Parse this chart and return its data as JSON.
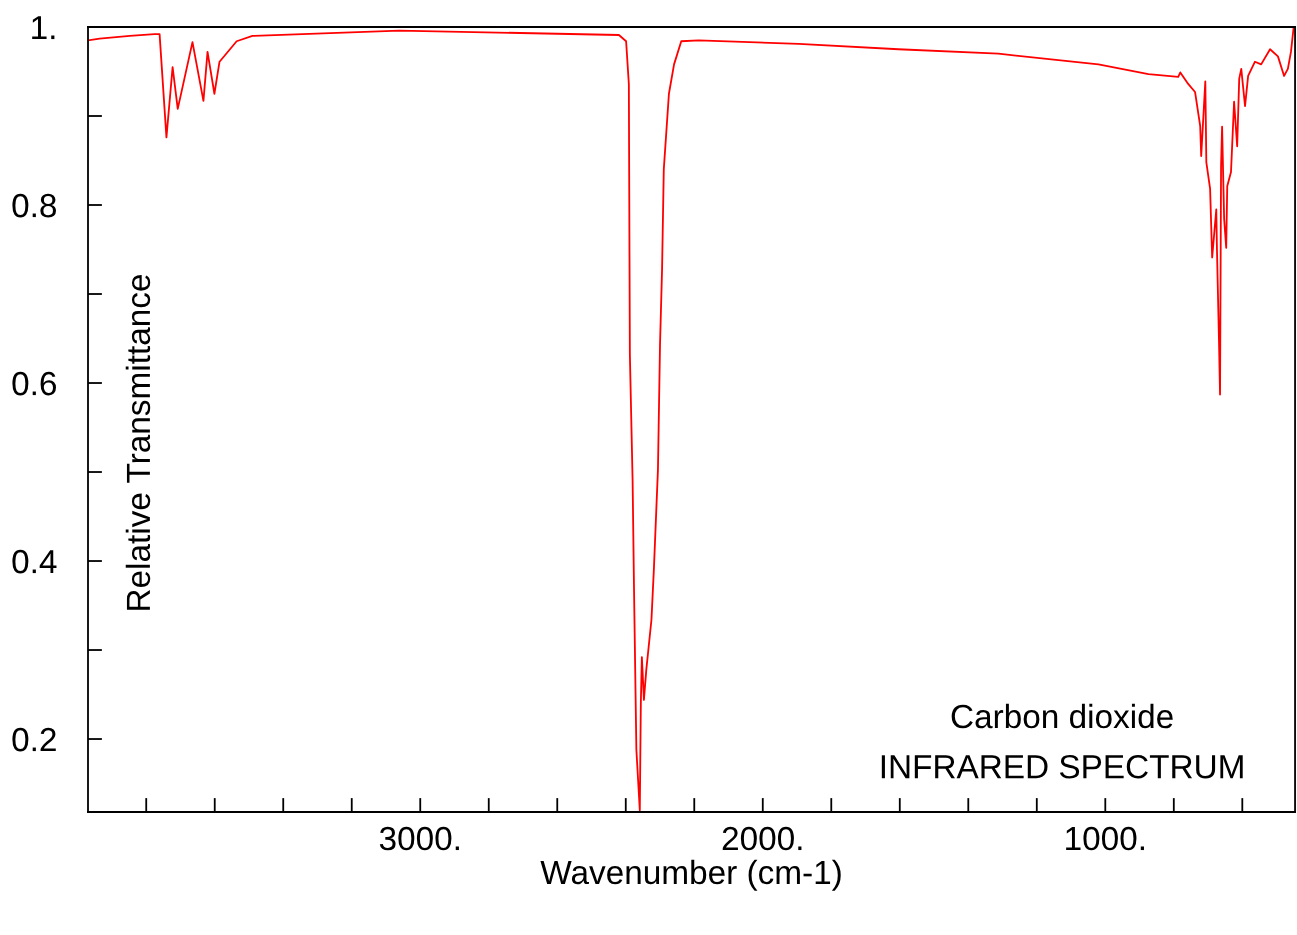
{
  "chart_data": {
    "type": "line",
    "xlabel": "Wavenumber (cm-1)",
    "ylabel": "Relative Transmittance",
    "annotations": [
      "Carbon dioxide",
      "INFRARED SPECTRUM"
    ],
    "xlim": [
      3970,
      446
    ],
    "ylim": [
      0.118,
      1.0
    ],
    "xticks": [
      {
        "value": 3800,
        "label": null
      },
      {
        "value": 3600,
        "label": null
      },
      {
        "value": 3400,
        "label": null
      },
      {
        "value": 3200,
        "label": null
      },
      {
        "value": 3000,
        "label": "3000."
      },
      {
        "value": 2800,
        "label": null
      },
      {
        "value": 2600,
        "label": null
      },
      {
        "value": 2400,
        "label": null
      },
      {
        "value": 2200,
        "label": null
      },
      {
        "value": 2000,
        "label": "2000."
      },
      {
        "value": 1800,
        "label": null
      },
      {
        "value": 1600,
        "label": null
      },
      {
        "value": 1400,
        "label": null
      },
      {
        "value": 1200,
        "label": null
      },
      {
        "value": 1000,
        "label": "1000."
      },
      {
        "value": 800,
        "label": null
      },
      {
        "value": 600,
        "label": null
      }
    ],
    "yticks": [
      {
        "value": 0.2,
        "label": "0.2"
      },
      {
        "value": 0.3,
        "label": null
      },
      {
        "value": 0.4,
        "label": "0.4"
      },
      {
        "value": 0.5,
        "label": null
      },
      {
        "value": 0.6,
        "label": "0.6"
      },
      {
        "value": 0.7,
        "label": null
      },
      {
        "value": 0.8,
        "label": "0.8"
      },
      {
        "value": 0.9,
        "label": null
      },
      {
        "value": 1.0,
        "label": "1."
      }
    ],
    "grid": false,
    "legend": false,
    "marker": "none",
    "line_style": "solid",
    "series": [
      {
        "color": "#ff0000",
        "x": [
          3970,
          3936,
          3848,
          3776,
          3761,
          3741,
          3723,
          3708,
          3665,
          3633,
          3621,
          3601,
          3586,
          3536,
          3490,
          3061,
          2420,
          2399,
          2391,
          2388,
          2380,
          2376,
          2369,
          2359,
          2356,
          2353,
          2347,
          2340,
          2325,
          2318,
          2306,
          2300,
          2294,
          2289,
          2274,
          2259,
          2238,
          2187,
          1895,
          1604,
          1312,
          1020,
          874,
          787,
          781,
          758,
          738,
          723,
          720,
          708,
          705,
          694,
          688,
          676,
          674,
          668,
          665,
          662,
          659,
          653,
          647,
          644,
          633,
          624,
          615,
          609,
          603,
          592,
          583,
          563,
          545,
          519,
          496,
          478,
          467,
          458,
          450
        ],
        "values": [
          0.985,
          0.987,
          0.99,
          0.992,
          0.992,
          0.876,
          0.955,
          0.908,
          0.983,
          0.917,
          0.972,
          0.925,
          0.961,
          0.984,
          0.99,
          0.996,
          0.991,
          0.984,
          0.936,
          0.632,
          0.49,
          0.371,
          0.188,
          0.12,
          0.24,
          0.292,
          0.244,
          0.278,
          0.334,
          0.39,
          0.503,
          0.643,
          0.728,
          0.84,
          0.925,
          0.958,
          0.984,
          0.985,
          0.981,
          0.975,
          0.97,
          0.958,
          0.947,
          0.944,
          0.949,
          0.936,
          0.927,
          0.889,
          0.855,
          0.939,
          0.848,
          0.818,
          0.741,
          0.795,
          0.75,
          0.646,
          0.587,
          0.844,
          0.888,
          0.784,
          0.752,
          0.821,
          0.837,
          0.916,
          0.866,
          0.942,
          0.953,
          0.911,
          0.945,
          0.961,
          0.958,
          0.975,
          0.967,
          0.945,
          0.953,
          0.972,
          1.0
        ]
      }
    ]
  }
}
